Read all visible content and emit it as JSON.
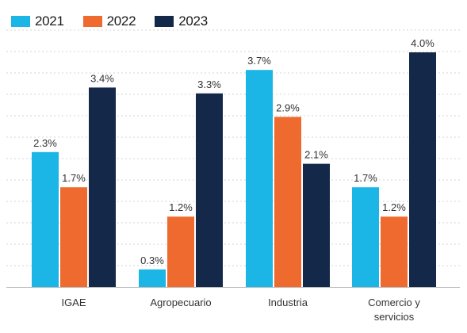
{
  "chart_data": {
    "type": "bar",
    "categories": [
      [
        "IGAE"
      ],
      [
        "Agropecuario"
      ],
      [
        "Industria"
      ],
      [
        "Comercio y",
        "servicios"
      ]
    ],
    "series": [
      {
        "name": "2021",
        "color": "#1BB5E6",
        "values": [
          2.3,
          0.3,
          3.7,
          1.7
        ],
        "labels": [
          "2.3%",
          "0.3%",
          "3.7%",
          "1.7%"
        ]
      },
      {
        "name": "2022",
        "color": "#EE6A2E",
        "values": [
          1.7,
          1.2,
          2.9,
          1.2
        ],
        "labels": [
          "1.7%",
          "1.2%",
          "2.9%",
          "1.2%"
        ]
      },
      {
        "name": "2023",
        "color": "#14284A",
        "values": [
          3.4,
          3.3,
          2.1,
          4.0
        ],
        "labels": [
          "3.4%",
          "3.3%",
          "2.1%",
          "4.0%"
        ]
      }
    ],
    "ylim": [
      0,
      4.0
    ],
    "grid": true,
    "legend_position": "top-left"
  }
}
